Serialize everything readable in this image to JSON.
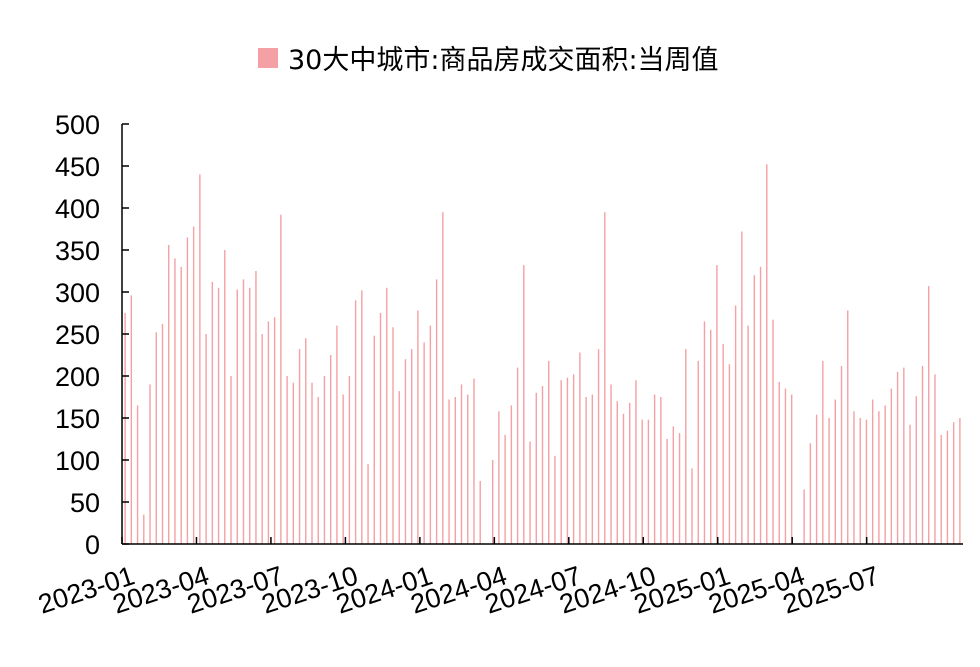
{
  "chart_data": {
    "type": "bar",
    "legend": {
      "label": "30大中城市:商品房成交面积:当周值",
      "position": "top",
      "color": "#f4a0a4"
    },
    "bar_color": "#f4a0a4",
    "axis_color": "#000000",
    "grid": false,
    "ylim": [
      0,
      500
    ],
    "yticks": [
      0,
      50,
      100,
      150,
      200,
      250,
      300,
      350,
      400,
      450,
      500
    ],
    "xticks": [
      "2023-01",
      "2023-04",
      "2023-07",
      "2023-10",
      "2024-01",
      "2024-04",
      "2024-07",
      "2024-10",
      "2025-01",
      "2025-04",
      "2025-07"
    ],
    "values": [
      275,
      296,
      165,
      35,
      190,
      252,
      262,
      356,
      340,
      330,
      365,
      378,
      440,
      250,
      312,
      305,
      350,
      200,
      303,
      315,
      305,
      325,
      250,
      265,
      270,
      392,
      200,
      192,
      232,
      245,
      192,
      175,
      200,
      225,
      260,
      178,
      200,
      290,
      302,
      95,
      248,
      275,
      305,
      258,
      182,
      220,
      232,
      278,
      240,
      260,
      315,
      395,
      172,
      175,
      190,
      178,
      197,
      75,
      0,
      100,
      158,
      130,
      165,
      210,
      332,
      122,
      180,
      188,
      218,
      105,
      195,
      198,
      202,
      228,
      175,
      178,
      232,
      395,
      190,
      170,
      155,
      168,
      195,
      148,
      148,
      178,
      175,
      125,
      140,
      132,
      232,
      90,
      218,
      265,
      255,
      332,
      238,
      214,
      284,
      372,
      260,
      320,
      330,
      452,
      267,
      193,
      185,
      178,
      0,
      65,
      120,
      154,
      218,
      150,
      172,
      212,
      278,
      158,
      150,
      148,
      172,
      158,
      165,
      185,
      205,
      210,
      142,
      176,
      212,
      307,
      202,
      130,
      135,
      145,
      150
    ]
  }
}
